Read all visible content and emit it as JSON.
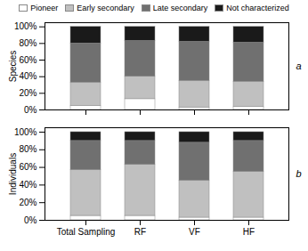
{
  "chart_data": [
    {
      "type": "bar",
      "stacked": true,
      "legend": "top",
      "tick_labels": "y",
      "ylabel": "Species",
      "annotations": [
        "a"
      ],
      "categories": [
        "Total Sampling",
        "RF",
        "VF",
        "HF"
      ],
      "series": [
        {
          "name": "Pioneer",
          "color": "#ffffff",
          "values": [
            5,
            13,
            3,
            4
          ]
        },
        {
          "name": "Early secondary",
          "color": "#c0c0c0",
          "values": [
            28,
            27,
            32,
            30
          ]
        },
        {
          "name": "Late secondary",
          "color": "#707070",
          "values": [
            47,
            43,
            47,
            47
          ]
        },
        {
          "name": "Not characterized",
          "color": "#1a1a1a",
          "values": [
            20,
            17,
            18,
            19
          ]
        }
      ],
      "ylim": [
        0,
        105
      ],
      "yticks": [
        {
          "value": 0,
          "label": "0%"
        },
        {
          "value": 20,
          "label": "20%"
        },
        {
          "value": 40,
          "label": "40%"
        },
        {
          "value": 60,
          "label": "60%"
        },
        {
          "value": 80,
          "label": "80%"
        },
        {
          "value": 100,
          "label": "100%"
        }
      ]
    },
    {
      "type": "bar",
      "stacked": true,
      "ylabel": "Individuals",
      "annotations": [
        "b"
      ],
      "categories": [
        "Total Sampling",
        "RF",
        "VF",
        "HF"
      ],
      "series": [
        {
          "name": "Pioneer",
          "color": "#ffffff",
          "values": [
            5,
            5,
            3,
            3
          ]
        },
        {
          "name": "Early secondary",
          "color": "#c0c0c0",
          "values": [
            52,
            58,
            42,
            52
          ]
        },
        {
          "name": "Late secondary",
          "color": "#707070",
          "values": [
            33,
            27,
            43,
            35
          ]
        },
        {
          "name": "Not characterized",
          "color": "#1a1a1a",
          "values": [
            10,
            10,
            12,
            10
          ]
        }
      ],
      "ylim": [
        0,
        105
      ],
      "yticks": [
        {
          "value": 0,
          "label": "0%"
        },
        {
          "value": 20,
          "label": "20%"
        },
        {
          "value": 40,
          "label": "40%"
        },
        {
          "value": 60,
          "label": "60%"
        },
        {
          "value": 80,
          "label": "80%"
        },
        {
          "value": 100,
          "label": "100%"
        }
      ]
    }
  ]
}
